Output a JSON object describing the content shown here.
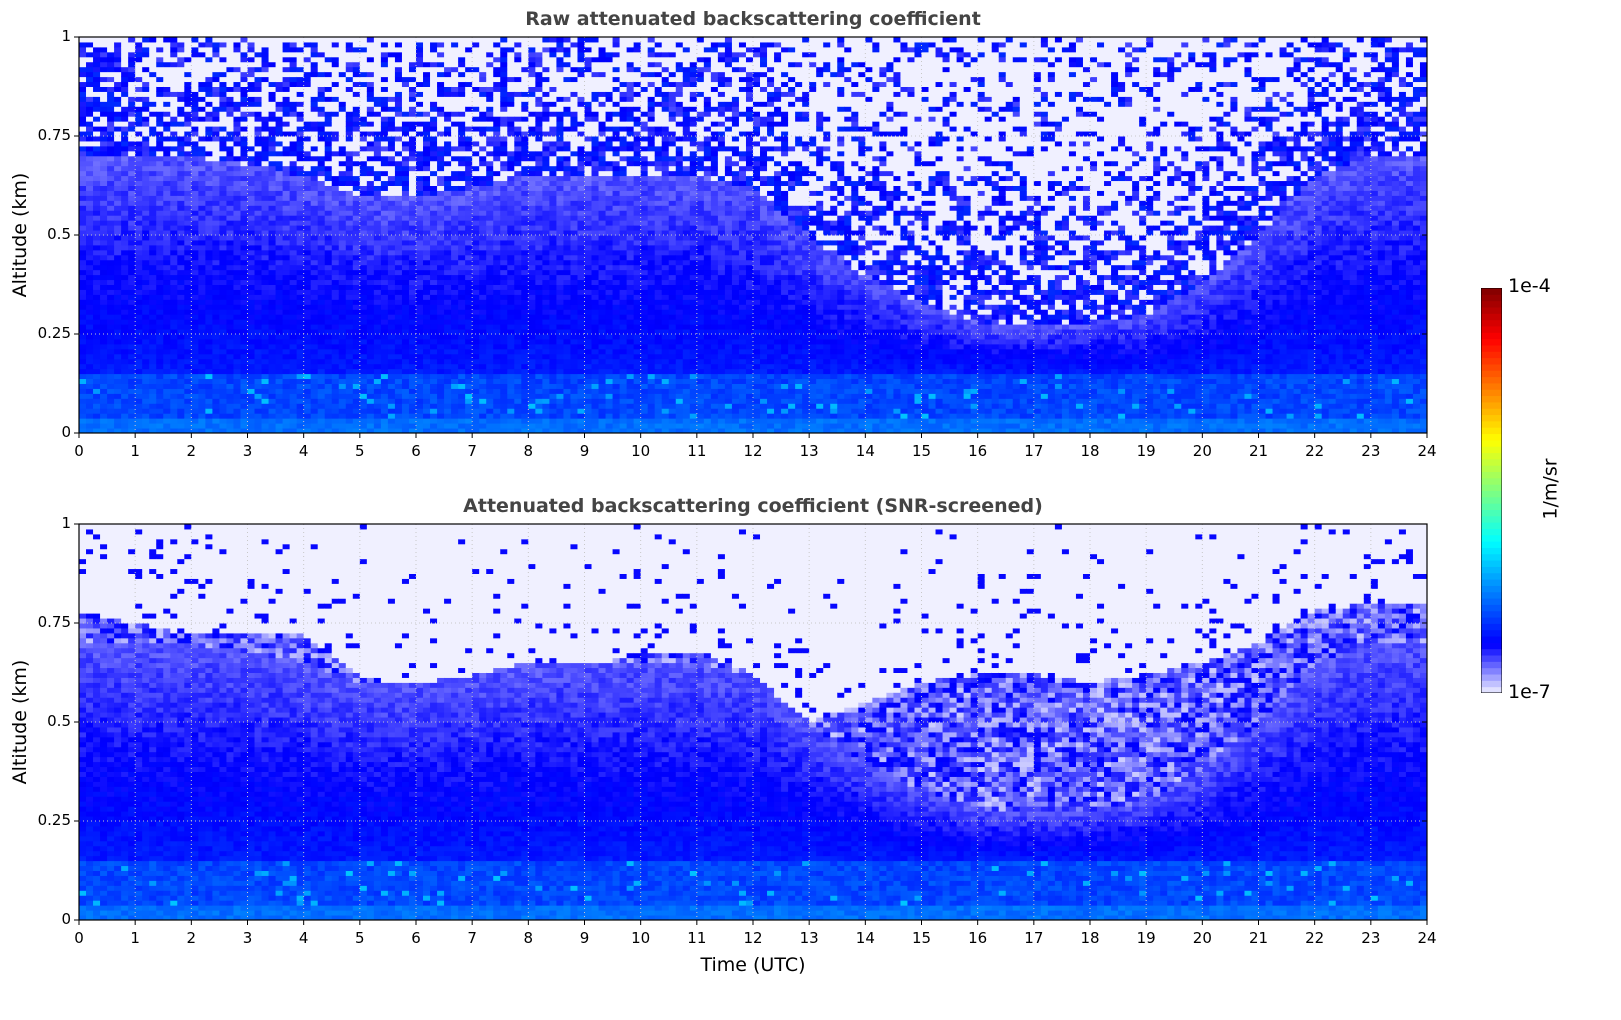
{
  "chart_data": [
    {
      "type": "heatmap",
      "title": "Raw attenuated backscattering coefficient",
      "xlabel": "",
      "ylabel": "Altitude (km)",
      "xlim": [
        0,
        24
      ],
      "ylim": [
        0,
        1
      ],
      "xticks": [
        "0",
        "1",
        "2",
        "3",
        "4",
        "5",
        "6",
        "7",
        "8",
        "9",
        "10",
        "11",
        "12",
        "13",
        "14",
        "15",
        "16",
        "17",
        "18",
        "19",
        "20",
        "21",
        "22",
        "23",
        "24"
      ],
      "yticks": [
        "0",
        "0.25",
        "0.5",
        "0.75",
        "1"
      ],
      "grid": true,
      "screened": false,
      "hours": [
        0,
        1,
        2,
        3,
        4,
        5,
        6,
        7,
        8,
        9,
        10,
        11,
        12,
        13,
        14,
        15,
        16,
        17,
        18,
        19,
        20,
        21,
        22,
        23,
        24
      ],
      "noise_onset_km": [
        0.7,
        0.7,
        0.7,
        0.68,
        0.65,
        0.6,
        0.6,
        0.62,
        0.65,
        0.65,
        0.65,
        0.65,
        0.62,
        0.5,
        0.4,
        0.33,
        0.28,
        0.27,
        0.28,
        0.3,
        0.38,
        0.5,
        0.65,
        0.7,
        0.7
      ],
      "value_scale": "log10 1/m/sr",
      "surface_value": -6.3,
      "boundary_layer_value": -6.55
    },
    {
      "type": "heatmap",
      "title": "Attenuated backscattering coefficient (SNR-screened)",
      "xlabel": "Time (UTC)",
      "ylabel": "Altitude (km)",
      "xlim": [
        0,
        24
      ],
      "ylim": [
        0,
        1
      ],
      "xticks": [
        "0",
        "1",
        "2",
        "3",
        "4",
        "5",
        "6",
        "7",
        "8",
        "9",
        "10",
        "11",
        "12",
        "13",
        "14",
        "15",
        "16",
        "17",
        "18",
        "19",
        "20",
        "21",
        "22",
        "23",
        "24"
      ],
      "yticks": [
        "0",
        "0.25",
        "0.5",
        "0.75",
        "1"
      ],
      "grid": true,
      "screened": true,
      "hours": [
        0,
        1,
        2,
        3,
        4,
        5,
        6,
        7,
        8,
        9,
        10,
        11,
        12,
        13,
        14,
        15,
        16,
        17,
        18,
        19,
        20,
        21,
        22,
        23,
        24
      ],
      "noise_onset_km": [
        0.7,
        0.7,
        0.7,
        0.68,
        0.65,
        0.6,
        0.6,
        0.62,
        0.65,
        0.65,
        0.65,
        0.65,
        0.62,
        0.5,
        0.4,
        0.33,
        0.28,
        0.27,
        0.28,
        0.3,
        0.38,
        0.5,
        0.65,
        0.7,
        0.7
      ],
      "screened_top_km": [
        0.78,
        0.75,
        0.72,
        0.72,
        0.72,
        0.62,
        0.58,
        0.58,
        0.6,
        0.63,
        0.68,
        0.68,
        0.62,
        0.5,
        0.55,
        0.6,
        0.62,
        0.62,
        0.6,
        0.62,
        0.65,
        0.7,
        0.78,
        0.8,
        0.8
      ],
      "value_scale": "log10 1/m/sr",
      "surface_value": -6.3,
      "boundary_layer_value": -6.55
    }
  ],
  "colorbar": {
    "min_label": "1e-7",
    "max_label": "1e-4",
    "unit": "1/m/sr",
    "range_log10": [
      -7,
      -4
    ]
  }
}
